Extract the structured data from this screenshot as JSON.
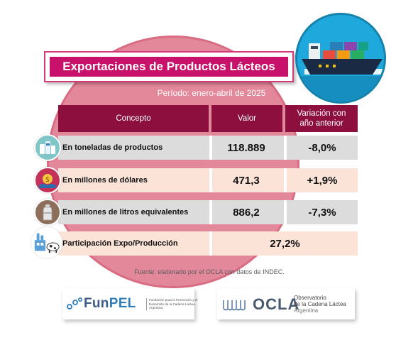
{
  "title": "Exportaciones de Productos Lácteos",
  "period": "Período: enero-abril de 2025",
  "table": {
    "headers": {
      "concept": "Concepto",
      "value": "Valor",
      "variation": "Variación con año anterior"
    },
    "rows": [
      {
        "concept": "En toneladas de productos",
        "value": "118.889",
        "variation": "-8,0%",
        "icon": "dairy-products-icon"
      },
      {
        "concept": "En millones de dólares",
        "value": "471,3",
        "variation": "+1,9%",
        "icon": "money-handshake-icon"
      },
      {
        "concept": "En millones de litros equivalentes",
        "value": "886,2",
        "variation": "-7,3%",
        "icon": "milk-can-icon"
      },
      {
        "concept": "Participación Expo/Producción",
        "value": "27,2%",
        "icon": "factory-cow-icon"
      }
    ]
  },
  "source": "Fuente: elaborado por el OCLA con datos de INDEC.",
  "logos": {
    "funpel": {
      "name_a": "Fun",
      "name_b": "PEL",
      "subtitle": "Fundación para la Promoción y el Desarrollo de la Cadena Láctea Argentina"
    },
    "ocla": {
      "name": "OCLA",
      "line1": "Observatorio",
      "line2": "de la Cadena Láctea",
      "line3": "Argentina"
    }
  },
  "colors": {
    "magenta": "#c8116b",
    "header": "#8c0f3e",
    "circle": "#e3889a",
    "ship_bg": "#1fa8dc"
  }
}
